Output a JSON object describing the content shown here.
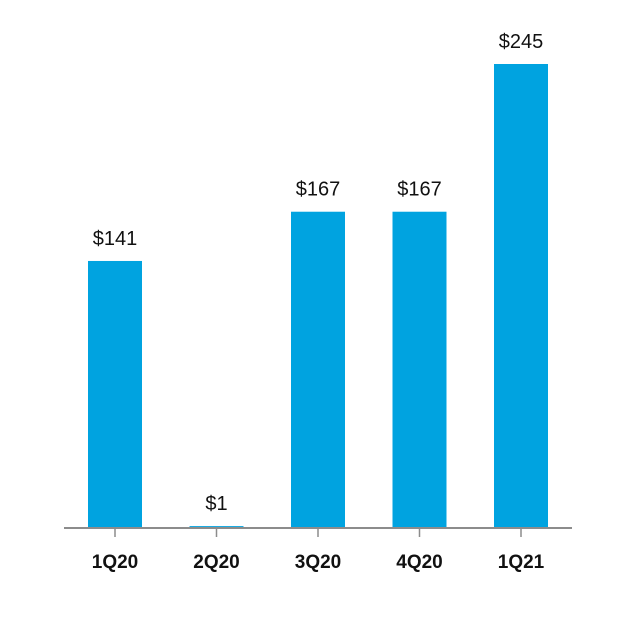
{
  "chart_data": {
    "type": "bar",
    "categories": [
      "1Q20",
      "2Q20",
      "3Q20",
      "4Q20",
      "1Q21"
    ],
    "values": [
      141,
      1,
      167,
      167,
      245
    ],
    "data_labels": [
      "$141",
      "$1",
      "$167",
      "$167",
      "$245"
    ],
    "title": "",
    "xlabel": "",
    "ylabel": "",
    "ylim": [
      0,
      245
    ],
    "grid": false,
    "colors": {
      "bar": "#00a3e0",
      "axis": "#8c8c8c",
      "text": "#111111"
    }
  }
}
